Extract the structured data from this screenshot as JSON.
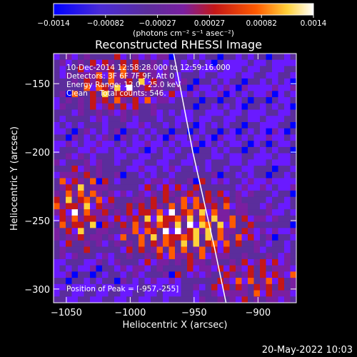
{
  "chart_data": {
    "type": "heatmap",
    "title": "Reconstructed RHESSI Image",
    "xlabel": "Heliocentric X (arcsec)",
    "ylabel": "Heliocentric Y (arcsec)",
    "xlim": [
      -1060,
      -870
    ],
    "ylim": [
      -310,
      -128
    ],
    "x_ticks": [
      {
        "value": -1050,
        "label": "−1050"
      },
      {
        "value": -1000,
        "label": "−1000"
      },
      {
        "value": -950,
        "label": "−950"
      },
      {
        "value": -900,
        "label": "−900"
      }
    ],
    "y_ticks": [
      {
        "value": -150,
        "label": "−150"
      },
      {
        "value": -200,
        "label": "−200"
      },
      {
        "value": -250,
        "label": "−250"
      },
      {
        "value": -300,
        "label": "−300"
      }
    ],
    "colorbar": {
      "min": -0.0014,
      "max": 0.0014,
      "ticks": [
        "−0.0014",
        "−0.00082",
        "−0.00027",
        "0.00027",
        "0.00082",
        "0.0014"
      ],
      "unit_label": "(photons cm⁻² s⁻¹ asec⁻²)"
    },
    "annotations": [
      "10-Dec-2014 12:58:28.000 to 12:59:16.000",
      "Detectors: 3F 6F 7F 9F, Att 0",
      "Energy Range: 12.0 - 25.0 keV",
      "Clean     Total counts: 546."
    ],
    "peak_label": "Position of Peak = [-957,-255]",
    "peak": {
      "x": -957,
      "y": -255
    },
    "limb_points": [
      [
        -966,
        -128
      ],
      [
        -951,
        -200
      ],
      [
        -934,
        -270
      ],
      [
        -925,
        -310
      ]
    ],
    "grid": false
  },
  "footer": {
    "timestamp": "20-May-2022 10:03"
  },
  "colors": {
    "background": "#000000",
    "text": "#ffffff",
    "colormap": [
      "#0000ff",
      "#6a1aff",
      "#5b2d9c",
      "#7a1fa0",
      "#c41717",
      "#ff5a00",
      "#ffd23a",
      "#ffffff"
    ]
  }
}
